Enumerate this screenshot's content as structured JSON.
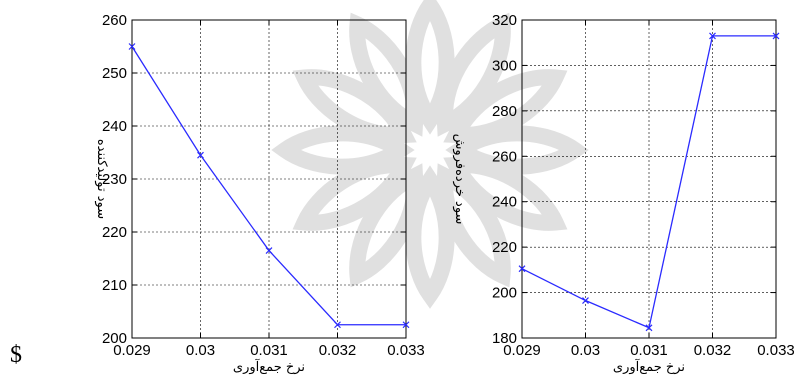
{
  "footnote": "$",
  "colors": {
    "series": "#2b2bff",
    "grid": "#000000",
    "watermark": "#c8c8c8"
  },
  "chart_data": [
    {
      "type": "line",
      "x": [
        0.029,
        0.03,
        0.031,
        0.032,
        0.033
      ],
      "y": [
        255,
        234.5,
        216.5,
        202.5,
        202.5
      ],
      "xlabel": "نرخ جمع‌آوری",
      "ylabel": "سود تولیدکننده",
      "xlim": [
        0.029,
        0.033
      ],
      "ylim": [
        200,
        260
      ],
      "xticks": [
        "0.029",
        "0.03",
        "0.031",
        "0.032",
        "0.033"
      ],
      "yticks": [
        "200",
        "210",
        "220",
        "230",
        "240",
        "250",
        "260"
      ],
      "yticks_values": [
        200,
        210,
        220,
        230,
        240,
        250,
        260
      ],
      "marker": "x",
      "grid": true
    },
    {
      "type": "line",
      "x": [
        0.029,
        0.03,
        0.031,
        0.032,
        0.033
      ],
      "y": [
        210.5,
        196.5,
        184.5,
        313,
        313
      ],
      "xlabel": "نرخ جمع‌آوری",
      "ylabel": "سود خرده‌فروش",
      "xlim": [
        0.029,
        0.033
      ],
      "ylim": [
        180,
        320
      ],
      "xticks": [
        "0.029",
        "0.03",
        "0.031",
        "0.032",
        "0.033"
      ],
      "yticks": [
        "180",
        "200",
        "220",
        "240",
        "260",
        "280",
        "300",
        "320"
      ],
      "yticks_values": [
        180,
        200,
        220,
        240,
        260,
        280,
        300,
        320
      ],
      "marker": "x",
      "grid": true
    }
  ]
}
